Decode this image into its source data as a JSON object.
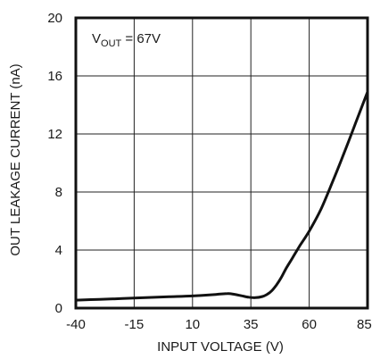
{
  "chart_data": {
    "type": "line",
    "xlabel": "INPUT VOLTAGE (V)",
    "ylabel": "OUT LEAKAGE CURRENT (nA)",
    "xlim": [
      -40,
      85
    ],
    "ylim": [
      0,
      20
    ],
    "x_ticks": [
      -40,
      -15,
      10,
      35,
      60,
      85
    ],
    "y_ticks": [
      0,
      4,
      8,
      12,
      16,
      20
    ],
    "x_tick_labels": [
      "-40",
      "-15",
      "10",
      "35",
      "60",
      "85"
    ],
    "y_tick_labels": [
      "0",
      "4",
      "8",
      "12",
      "16",
      "20"
    ],
    "grid": true,
    "annotation": {
      "main": "V",
      "sub": "OUT",
      "rest": " = 67V"
    },
    "series": [
      {
        "x": [
          -40,
          -30,
          -20,
          -10,
          0,
          10,
          20,
          25,
          28,
          31,
          34,
          37,
          40,
          42,
          44,
          46,
          48,
          50,
          53,
          56,
          60,
          65,
          70,
          75,
          80,
          85
        ],
        "y": [
          0.55,
          0.6,
          0.66,
          0.72,
          0.78,
          0.84,
          0.94,
          1.0,
          0.95,
          0.85,
          0.75,
          0.72,
          0.8,
          0.95,
          1.2,
          1.6,
          2.1,
          2.7,
          3.5,
          4.3,
          5.3,
          6.8,
          8.7,
          10.7,
          12.8,
          14.9
        ]
      }
    ]
  }
}
